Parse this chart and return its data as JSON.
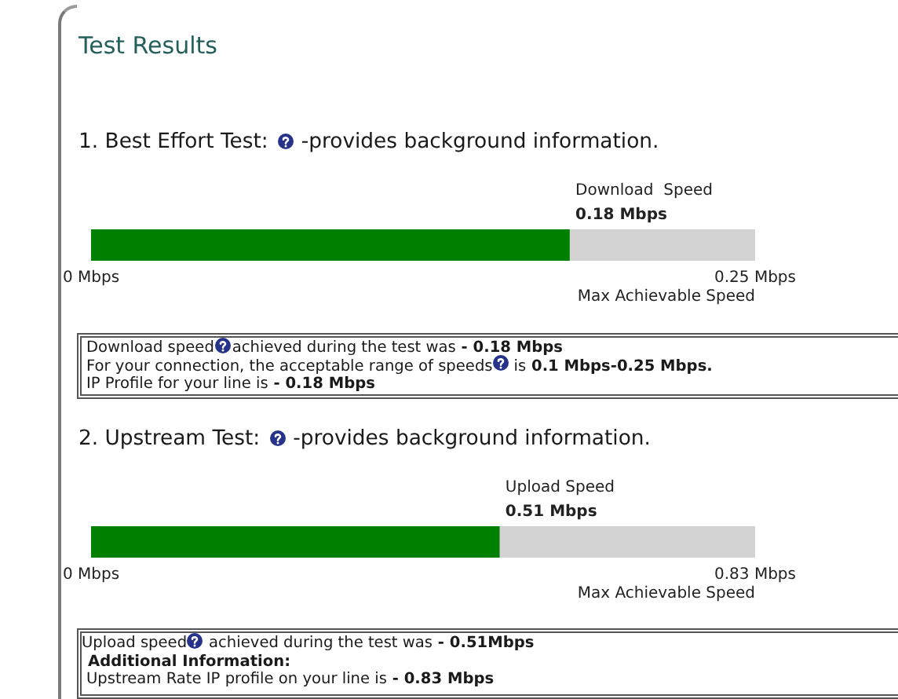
{
  "chart_data": [
    {
      "type": "bar",
      "title": "Test Results",
      "subtitle": "1. Best Effort Test: -provides background information.",
      "orientation": "horizontal",
      "categories": [
        "Download  Speed"
      ],
      "series": [
        {
          "color": "#008000",
          "values": [
            0.18
          ],
          "value_labels": [
            "0.18 Mbps"
          ]
        }
      ],
      "xlim": [
        0,
        0.25
      ],
      "xticks": [
        {
          "value": 0,
          "label": "0 Mbps"
        },
        {
          "value": 0.25,
          "label": "0.25 Mbps"
        }
      ],
      "xlabel": "Max Achievable Speed",
      "bands": [
        {
          "axis": "x",
          "from": 0,
          "to": 0.25,
          "color": "#d3d3d3"
        }
      ],
      "grid": false,
      "legend": false,
      "annotations": [
        "Download speed achieved during the test was - 0.18 Mbps",
        "For your connection, the acceptable range of speeds is 0.1 Mbps-0.25 Mbps.",
        "IP Profile for your line is - 0.18 Mbps"
      ]
    },
    {
      "type": "bar",
      "title": "2. Upstream Test: -provides background information.",
      "orientation": "horizontal",
      "categories": [
        "Upload Speed"
      ],
      "series": [
        {
          "color": "#008000",
          "values": [
            0.51
          ],
          "value_labels": [
            "0.51 Mbps"
          ]
        }
      ],
      "xlim": [
        0,
        0.83
      ],
      "xticks": [
        {
          "value": 0,
          "label": "0 Mbps"
        },
        {
          "value": 0.83,
          "label": "0.83 Mbps"
        }
      ],
      "xlabel": "Max Achievable Speed",
      "bands": [
        {
          "axis": "x",
          "from": 0,
          "to": 0.83,
          "color": "#d3d3d3"
        }
      ],
      "grid": false,
      "legend": false,
      "annotations": [
        "Upload speed achieved during the test was - 0.51Mbps",
        "Additional Information:",
        "Upstream Rate IP profile on your line is - 0.83 Mbps"
      ]
    }
  ]
}
